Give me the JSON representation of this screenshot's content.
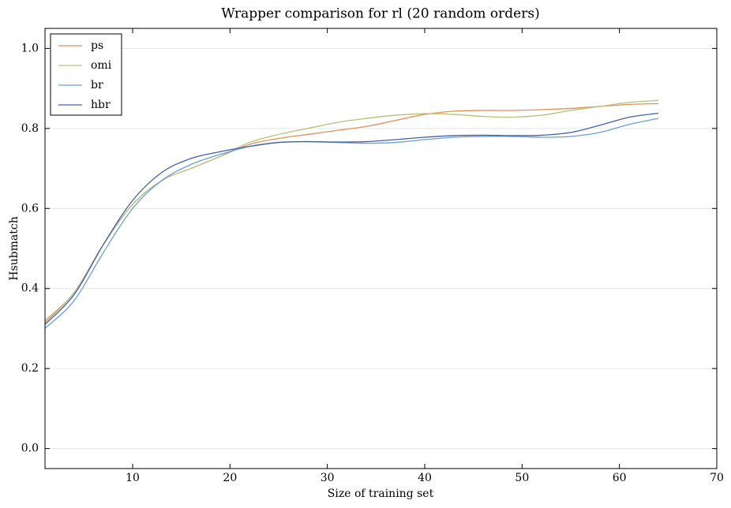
{
  "chart_data": {
    "type": "line",
    "title": "Wrapper comparison for rl (20 random orders)",
    "x_label": "Size of training set",
    "y_label": "Hsubmatch",
    "x": [
      1,
      4,
      7,
      10,
      13,
      16,
      19,
      22,
      25,
      28,
      31,
      34,
      37,
      40,
      43,
      46,
      49,
      52,
      55,
      58,
      61,
      64
    ],
    "series": [
      {
        "name": "ps",
        "color": "#e0915a",
        "values": [
          0.315,
          0.39,
          0.51,
          0.61,
          0.67,
          0.7,
          0.73,
          0.76,
          0.775,
          0.785,
          0.795,
          0.805,
          0.82,
          0.835,
          0.843,
          0.845,
          0.845,
          0.847,
          0.85,
          0.855,
          0.86,
          0.862
        ]
      },
      {
        "name": "omi",
        "color": "#b6c07e",
        "values": [
          0.32,
          0.39,
          0.51,
          0.61,
          0.67,
          0.7,
          0.73,
          0.765,
          0.785,
          0.8,
          0.815,
          0.825,
          0.833,
          0.837,
          0.835,
          0.83,
          0.828,
          0.833,
          0.845,
          0.855,
          0.865,
          0.87
        ]
      },
      {
        "name": "br",
        "color": "#6a9fd0",
        "values": [
          0.3,
          0.37,
          0.49,
          0.6,
          0.67,
          0.71,
          0.735,
          0.755,
          0.765,
          0.767,
          0.765,
          0.763,
          0.765,
          0.772,
          0.778,
          0.78,
          0.78,
          0.778,
          0.78,
          0.79,
          0.81,
          0.825
        ]
      },
      {
        "name": "hbr",
        "color": "#4461a8",
        "values": [
          0.31,
          0.385,
          0.51,
          0.62,
          0.69,
          0.725,
          0.742,
          0.755,
          0.765,
          0.767,
          0.766,
          0.767,
          0.772,
          0.778,
          0.782,
          0.783,
          0.782,
          0.783,
          0.79,
          0.808,
          0.828,
          0.838
        ]
      }
    ],
    "xlim": [
      1,
      70
    ],
    "xticks": [
      10,
      20,
      30,
      40,
      50,
      60,
      70
    ],
    "ylim": [
      -0.05,
      1.05
    ],
    "yticks": [
      {
        "value": 0,
        "label": "0.0"
      },
      {
        "value": 0.2,
        "label": "0.2"
      },
      {
        "value": 0.4,
        "label": "0.4"
      },
      {
        "value": 0.6,
        "label": "0.6"
      },
      {
        "value": 0.8,
        "label": "0.8"
      },
      {
        "value": 1,
        "label": "1.0"
      }
    ],
    "grid": true,
    "legend": "upper-left"
  }
}
